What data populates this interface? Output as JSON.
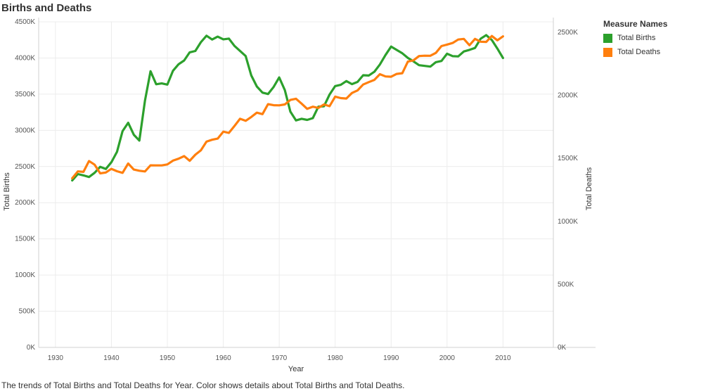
{
  "title": "Births and Deaths",
  "caption": "The trends of Total Births and Total Deaths for Year.  Color shows details about Total Births and Total Deaths.",
  "legend": {
    "title": "Measure Names",
    "items": [
      {
        "label": "Total Births",
        "color": "#2ca02c"
      },
      {
        "label": "Total Deaths",
        "color": "#ff7f0e"
      }
    ]
  },
  "chart_data": {
    "type": "line",
    "title": "Births and Deaths",
    "xlabel": "Year",
    "ylabel_left": "Total Births",
    "ylabel_right": "Total Deaths",
    "xlim": [
      1927,
      1784
    ],
    "x_ticks": [
      1930,
      1940,
      1950,
      1960,
      1970,
      1980,
      1990,
      2000,
      2010
    ],
    "x_tick_labels": [
      "1930",
      "1940",
      "1950",
      "1960",
      "1970",
      "1980",
      "1990",
      "2000",
      "2010"
    ],
    "y_left": {
      "lim": [
        0,
        4500
      ],
      "ticks": [
        0,
        500,
        1000,
        1500,
        2000,
        2500,
        3000,
        3500,
        4000,
        4500
      ],
      "tick_labels": [
        "0K",
        "500K",
        "1000K",
        "1500K",
        "2000K",
        "2500K",
        "3000K",
        "3500K",
        "4000K",
        "4500K"
      ]
    },
    "y_right": {
      "lim": [
        0,
        2500
      ],
      "ticks": [
        0,
        500,
        1000,
        1500,
        2000,
        2500
      ],
      "tick_labels": [
        "0K",
        "500K",
        "1000K",
        "1500K",
        "2000K",
        "2500K"
      ]
    },
    "grid": true,
    "legend_position": "top-right",
    "series": [
      {
        "name": "Total Births",
        "axis": "left",
        "color": "#2ca02c",
        "x": [
          1933,
          1934,
          1935,
          1936,
          1937,
          1938,
          1939,
          1940,
          1941,
          1942,
          1943,
          1944,
          1945,
          1946,
          1947,
          1948,
          1949,
          1950,
          1951,
          1952,
          1953,
          1954,
          1955,
          1956,
          1957,
          1958,
          1959,
          1960,
          1961,
          1962,
          1963,
          1964,
          1965,
          1966,
          1967,
          1968,
          1969,
          1970,
          1971,
          1972,
          1973,
          1974,
          1975,
          1976,
          1977,
          1978,
          1979,
          1980,
          1981,
          1982,
          1983,
          1984,
          1985,
          1986,
          1987,
          1988,
          1989,
          1990,
          1991,
          1992,
          1993,
          1994,
          1995,
          1996,
          1997,
          1998,
          1999,
          2000,
          2001,
          2002,
          2003,
          2004,
          2005,
          2006,
          2007,
          2008,
          2009,
          2010
        ],
        "values": [
          2307,
          2396,
          2377,
          2355,
          2413,
          2496,
          2466,
          2559,
          2703,
          2989,
          3104,
          2939,
          2858,
          3411,
          3817,
          3637,
          3649,
          3632,
          3823,
          3913,
          3965,
          4078,
          4097,
          4218,
          4308,
          4255,
          4295,
          4258,
          4268,
          4167,
          4098,
          4027,
          3760,
          3606,
          3521,
          3502,
          3600,
          3731,
          3556,
          3258,
          3137,
          3160,
          3144,
          3168,
          3327,
          3333,
          3494,
          3612,
          3629,
          3681,
          3639,
          3669,
          3761,
          3757,
          3809,
          3910,
          4041,
          4158,
          4111,
          4065,
          4000,
          3953,
          3900,
          3891,
          3881,
          3942,
          3959,
          4059,
          4026,
          4022,
          4090,
          4112,
          4138,
          4266,
          4316,
          4248,
          4130,
          3999
        ]
      },
      {
        "name": "Total Deaths",
        "axis": "right",
        "color": "#ff7f0e",
        "x": [
          1933,
          1934,
          1935,
          1936,
          1937,
          1938,
          1939,
          1940,
          1941,
          1942,
          1943,
          1944,
          1945,
          1946,
          1947,
          1948,
          1949,
          1950,
          1951,
          1952,
          1953,
          1954,
          1955,
          1956,
          1957,
          1958,
          1959,
          1960,
          1961,
          1962,
          1963,
          1964,
          1965,
          1966,
          1967,
          1968,
          1969,
          1970,
          1971,
          1972,
          1973,
          1974,
          1975,
          1976,
          1977,
          1978,
          1979,
          1980,
          1981,
          1982,
          1983,
          1984,
          1985,
          1986,
          1987,
          1988,
          1989,
          1990,
          1991,
          1992,
          1993,
          1994,
          1995,
          1996,
          1997,
          1998,
          1999,
          2000,
          2001,
          2002,
          2003,
          2004,
          2005,
          2006,
          2007,
          2008,
          2009,
          2010
        ],
        "values": [
          1342,
          1397,
          1393,
          1479,
          1450,
          1381,
          1388,
          1417,
          1398,
          1385,
          1459,
          1411,
          1402,
          1396,
          1445,
          1444,
          1444,
          1452,
          1482,
          1497,
          1518,
          1481,
          1529,
          1564,
          1633,
          1648,
          1657,
          1712,
          1702,
          1757,
          1814,
          1798,
          1828,
          1863,
          1851,
          1930,
          1922,
          1921,
          1928,
          1964,
          1973,
          1934,
          1893,
          1910,
          1900,
          1928,
          1914,
          1990,
          1978,
          1975,
          2019,
          2039,
          2086,
          2105,
          2123,
          2168,
          2150,
          2148,
          2170,
          2176,
          2268,
          2278,
          2312,
          2315,
          2314,
          2337,
          2391,
          2403,
          2416,
          2443,
          2448,
          2398,
          2448,
          2426,
          2424,
          2471,
          2437,
          2468
        ]
      }
    ]
  }
}
